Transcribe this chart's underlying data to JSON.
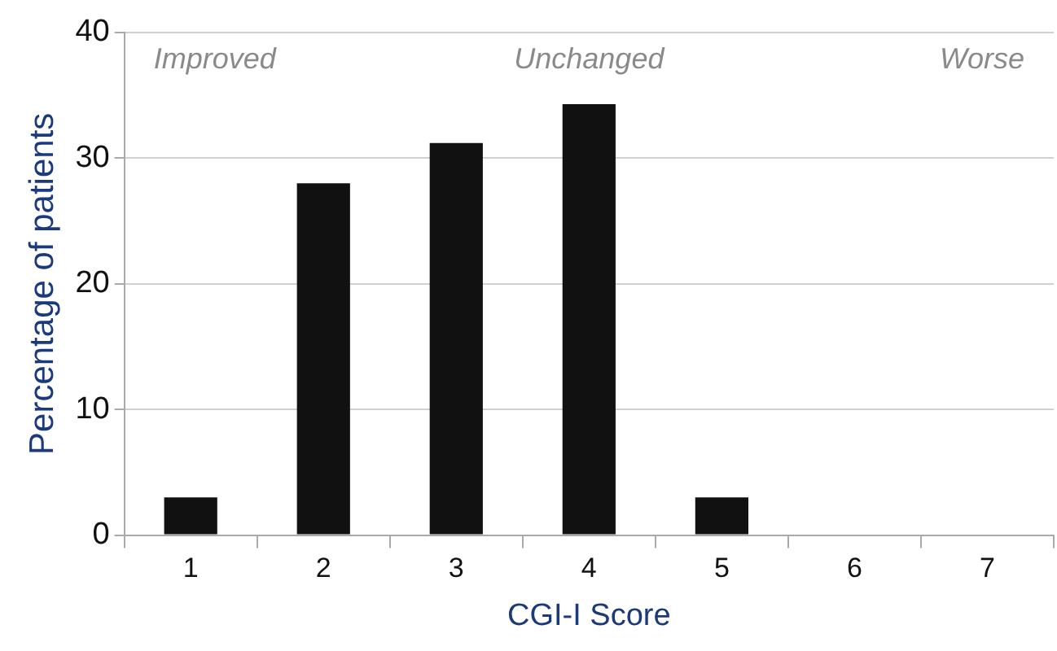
{
  "chart_data": {
    "type": "bar",
    "xlabel": "CGI-I Score",
    "ylabel": "Percentage of patients",
    "categories": [
      "1",
      "2",
      "3",
      "4",
      "5",
      "6",
      "7"
    ],
    "values": [
      3.0,
      28.0,
      31.2,
      34.3,
      3.0,
      0,
      0
    ],
    "color": "#111111",
    "ylim": [
      0,
      40
    ],
    "yticks": [
      0,
      10,
      20,
      30,
      40
    ],
    "grid": "y",
    "legend": false,
    "annotations": [
      "Improved",
      "Unchanged",
      "Worse"
    ]
  }
}
